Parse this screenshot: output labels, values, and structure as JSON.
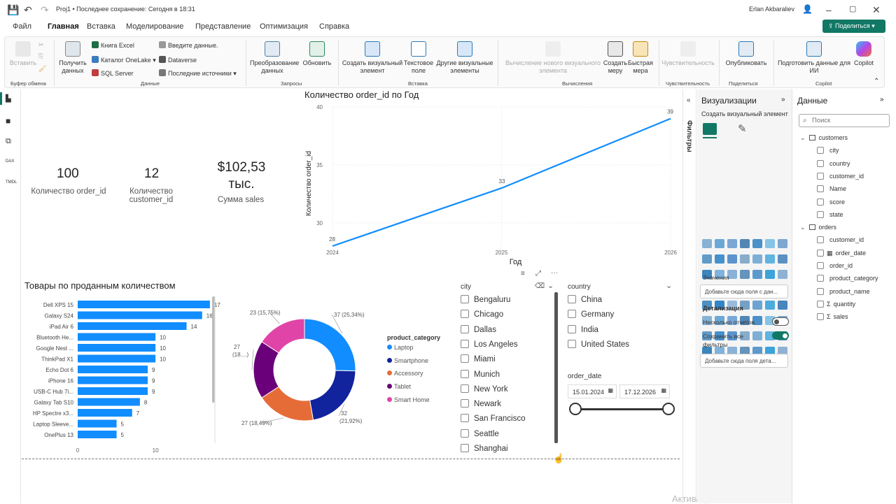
{
  "titlebar": {
    "title": "Proj1 • Последнее сохранение: Сегодня в 18:31",
    "user": "Erlan Akbaraliev"
  },
  "menu": [
    "Файл",
    "Главная",
    "Вставка",
    "Моделирование",
    "Представление",
    "Оптимизация",
    "Справка"
  ],
  "share_label": "Поделиться",
  "ribbon": {
    "paste": "Вставить",
    "clipboard_group": "Буфер обмена",
    "get_data": "Получить данных",
    "excel": "Книга Excel",
    "onelake": "Каталог OneLake",
    "sql": "SQL Server",
    "enter_data": "Введите данные.",
    "dataverse": "Dataverse",
    "recent": "Последние источники",
    "data_group": "Данные",
    "transform": "Преобразование данных",
    "refresh": "Обновить",
    "queries_group": "Запросы",
    "new_visual": "Создать визуальный элемент",
    "textbox": "Текстовое поле",
    "more_visuals": "Другие визуальные элементы",
    "insert_group": "Вставка",
    "new_calc": "Вычисление нового визуального элемента",
    "new_measure": "Создать меру",
    "quick_measure": "Быстрая мера",
    "calc_group": "Вычисления",
    "sensitivity": "Чувствительность",
    "sensitivity_group": "Чувствительность",
    "publish": "Опубликовать",
    "share_group": "Поделиться",
    "copilot_prep": "Подготовить данные для ИИ",
    "copilot": "Copilot",
    "copilot_group": "Copilot"
  },
  "cards": [
    {
      "value": "100",
      "label": "Количество order_id"
    },
    {
      "value": "12",
      "label": "Количество customer_id"
    },
    {
      "value": "$102,53 тыс.",
      "label": "Сумма sales"
    }
  ],
  "line_chart": {
    "title": "Количество order_id по Год",
    "xlabel": "Год",
    "ylabel": "Количество order_id",
    "chart_data": {
      "type": "line",
      "x": [
        2024,
        2025,
        2026
      ],
      "values": [
        28,
        33,
        39
      ],
      "ylim": [
        28,
        40
      ],
      "yticks": [
        30,
        35,
        40
      ],
      "color": "#118dff"
    }
  },
  "bar_chart": {
    "title": "Товары по проданным количеством",
    "chart_data": {
      "type": "bar",
      "categories": [
        "Dell XPS 15",
        "Galaxy S24",
        "iPad Air 6",
        "Bluetooth He...",
        "Google Nest ...",
        "ThinkPad X1",
        "Echo Dot 6",
        "iPhone 16",
        "USB-C Hub 7i...",
        "Galaxy Tab S10",
        "HP Spectre x3...",
        "Laptop Sleeve...",
        "OnePlus 13"
      ],
      "values": [
        17,
        16,
        14,
        10,
        10,
        10,
        9,
        9,
        9,
        8,
        7,
        5,
        5
      ],
      "xticks": [
        0,
        10
      ],
      "xlim": [
        0,
        18
      ],
      "color": "#118dff"
    }
  },
  "donut": {
    "legend_title": "product_category",
    "chart_data": {
      "type": "pie",
      "categories": [
        "Laptop",
        "Smartphone",
        "Accessory",
        "Tablet",
        "Smart Home"
      ],
      "values": [
        37,
        32,
        27,
        27,
        23
      ],
      "labels": [
        "37 (25,34%)",
        "32 (21,92%)",
        "27 (18,49%)",
        "27 (18....)",
        "23 (15,75%)"
      ],
      "colors": [
        "#118dff",
        "#12239e",
        "#e66c37",
        "#6b007b",
        "#e044a7"
      ]
    }
  },
  "city_slicer": {
    "title": "city",
    "items": [
      "Bengaluru",
      "Chicago",
      "Dallas",
      "Los Angeles",
      "Miami",
      "Munich",
      "New York",
      "Newark",
      "San Francisco",
      "Seattle",
      "Shanghai"
    ]
  },
  "country_slicer": {
    "title": "country",
    "items": [
      "China",
      "Germany",
      "India",
      "United States"
    ]
  },
  "date_slicer": {
    "title": "order_date",
    "start": "15.01.2024",
    "end": "17.12.2026"
  },
  "filters_label": "Фильтры",
  "viz_pane": {
    "title": "Визуализации",
    "subtitle": "Создать визуальный элемент",
    "values_label": "Значения",
    "values_placeholder": "Добавьте сюда поля с дан...",
    "drill_label": "Детализация",
    "multi_reports": "Несколько отчетов",
    "keep_filters": "Сохранить все фильтры",
    "drill_placeholder": "Добавьте сюда поля дета..."
  },
  "data_pane": {
    "title": "Данные",
    "search_placeholder": "Поиск",
    "tables": [
      {
        "name": "customers",
        "fields": [
          "city",
          "country",
          "customer_id",
          "Name",
          "score",
          "state"
        ]
      },
      {
        "name": "orders",
        "fields": [
          "customer_id",
          "order_date",
          "order_id",
          "product_category",
          "product_name",
          "quantity",
          "sales"
        ]
      }
    ]
  },
  "watermark": "Активация Windows"
}
